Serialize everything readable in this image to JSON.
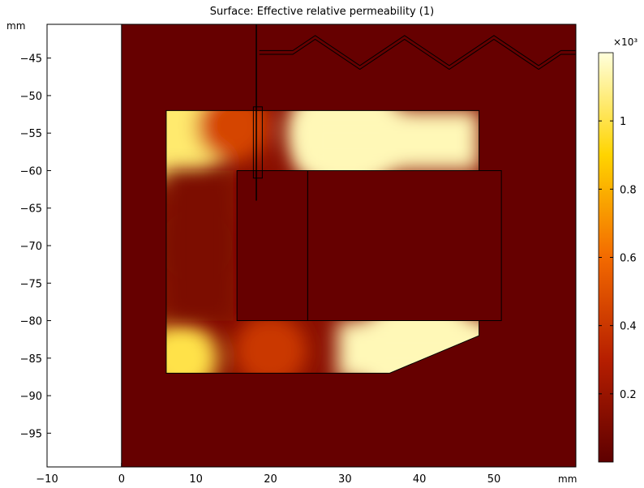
{
  "chart_data": {
    "type": "heatmap",
    "title": "Surface: Effective relative permeability (1)",
    "xlabel": "mm",
    "ylabel": "mm",
    "xlim": [
      -10,
      61
    ],
    "ylim": [
      -99.5,
      -40.5
    ],
    "xticks": [
      -10,
      0,
      10,
      20,
      30,
      40,
      50
    ],
    "yticks": [
      -45,
      -50,
      -55,
      -60,
      -65,
      -70,
      -75,
      -80,
      -85,
      -90,
      -95
    ],
    "colorbar": {
      "label": "×10³",
      "range": [
        0,
        1.2
      ],
      "ticks": [
        0.2,
        0.4,
        0.6,
        0.8,
        1
      ],
      "colormap": "heat",
      "colors": [
        "#5e0000",
        "#b61e00",
        "#f36a00",
        "#ffd400",
        "#ffffdc"
      ]
    },
    "regions": [
      {
        "name": "background air",
        "value": 0.001
      },
      {
        "name": "magnetic core (C-shape)",
        "value_range": [
          0.05,
          1.2
        ],
        "outline": [
          [
            6,
            -52
          ],
          [
            48,
            -52
          ],
          [
            48,
            -82
          ],
          [
            36,
            -87
          ],
          [
            6,
            -87
          ]
        ]
      },
      {
        "name": "coil block left",
        "value": 0.001,
        "outline": [
          [
            15.5,
            -60
          ],
          [
            25,
            -60
          ],
          [
            25,
            -80
          ],
          [
            15.5,
            -80
          ]
        ]
      },
      {
        "name": "coil block right",
        "value": 0.001,
        "outline": [
          [
            25,
            -60
          ],
          [
            51,
            -60
          ],
          [
            51,
            -80
          ],
          [
            25,
            -80
          ]
        ]
      }
    ],
    "samples": [
      {
        "x": 8,
        "y": -54,
        "value": 1.05
      },
      {
        "x": 15,
        "y": -54,
        "value": 0.45
      },
      {
        "x": 10,
        "y": -70,
        "value": 0.12
      },
      {
        "x": 30,
        "y": -55,
        "value": 1.15
      },
      {
        "x": 40,
        "y": -84,
        "value": 1.15
      },
      {
        "x": 8,
        "y": -85,
        "value": 1.0
      },
      {
        "x": 20,
        "y": -84,
        "value": 0.4
      }
    ]
  }
}
